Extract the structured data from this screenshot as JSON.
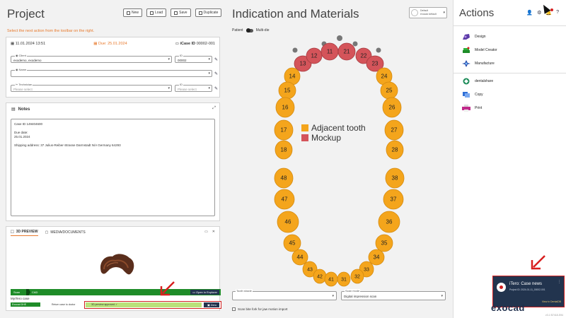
{
  "window": {
    "controls": [
      "–",
      "□",
      "×"
    ]
  },
  "project": {
    "title": "Project",
    "toolbar": {
      "new": "New",
      "load": "Load",
      "save": "Save",
      "duplicate": "Duplicate"
    },
    "hint": "Select the next action from the toolbar on the right.",
    "info": {
      "created": "11.01.2024 13:51",
      "due": "Due: 25.01.2024",
      "case_id_label": "iCase ID",
      "case_id": "00002-001",
      "client_label": "Client",
      "client_value": "exodemo, exodemo",
      "client_id_label": "ID",
      "client_id_value": "00002",
      "name_label": "Name",
      "technician_label": "Technician",
      "technician_placeholder": "Please select",
      "tech_id_label": "ID",
      "tech_id_placeholder": "Please select"
    },
    "notes": {
      "title": "Notes",
      "lines": [
        "Case ID 149404600",
        "",
        "Due date:",
        "25.01.2024",
        "",
        "Shipping address: 37 Julius-Reiber-Strasse Darmstadt N/A Germany 64293"
      ]
    },
    "preview": {
      "tab_preview": "3D PREVIEW",
      "tab_media": "MEDIA/DOCUMENTS",
      "scan": "Scan",
      "cad": "CAD",
      "open_explorer": "Open in Explorer",
      "mytero": "MyiTero case",
      "exocad_btn": "Exocad DHE",
      "return_label": "Return case to doctor",
      "approved": "3D preview approved",
      "zero_btn": "Zero"
    }
  },
  "center": {
    "title": "Indication and Materials",
    "profile_line1": "Default",
    "profile_line2": "exocad default",
    "toggle_patient": "Patient",
    "toggle_multidie": "Multi-die",
    "legend": [
      {
        "label": "Adjacent tooth",
        "color": "#f4a51c"
      },
      {
        "label": "Mockup",
        "color": "#d4545a"
      }
    ],
    "upper_teeth": [
      "13",
      "12",
      "11",
      "21",
      "22",
      "23",
      "14",
      "24",
      "15",
      "25",
      "16",
      "26",
      "17",
      "27",
      "18",
      "28"
    ],
    "lower_teeth": [
      "48",
      "38",
      "47",
      "37",
      "46",
      "36",
      "45",
      "35",
      "44",
      "34",
      "43",
      "33",
      "42",
      "32",
      "41",
      "31"
    ],
    "tooth_shade_label": "Tooth shade",
    "tooth_shade_value": "",
    "scan_mode_label": "Scan mode",
    "scan_mode_value": "Digital impression scan",
    "checkbox_label": "Scan bite fork for jaw motion import"
  },
  "actions": {
    "title": "Actions",
    "items": [
      {
        "label": "Design",
        "icon": "design-icon"
      },
      {
        "label": "Model Creator",
        "icon": "model-creator-icon"
      },
      {
        "label": "Manufacture",
        "icon": "manufacture-icon"
      },
      {
        "label": "dentalshare",
        "icon": "dentalshare-icon"
      },
      {
        "label": "Copy",
        "icon": "copy-icon"
      },
      {
        "label": "Print",
        "icon": "print-icon"
      }
    ],
    "toast": {
      "title": "iTero: Case news",
      "subtitle": "Project ID: 2024-01-11_00002-001",
      "link": "View in DentalDB"
    },
    "brand": "exocad",
    "version": "v3.1 B7418-S94"
  }
}
